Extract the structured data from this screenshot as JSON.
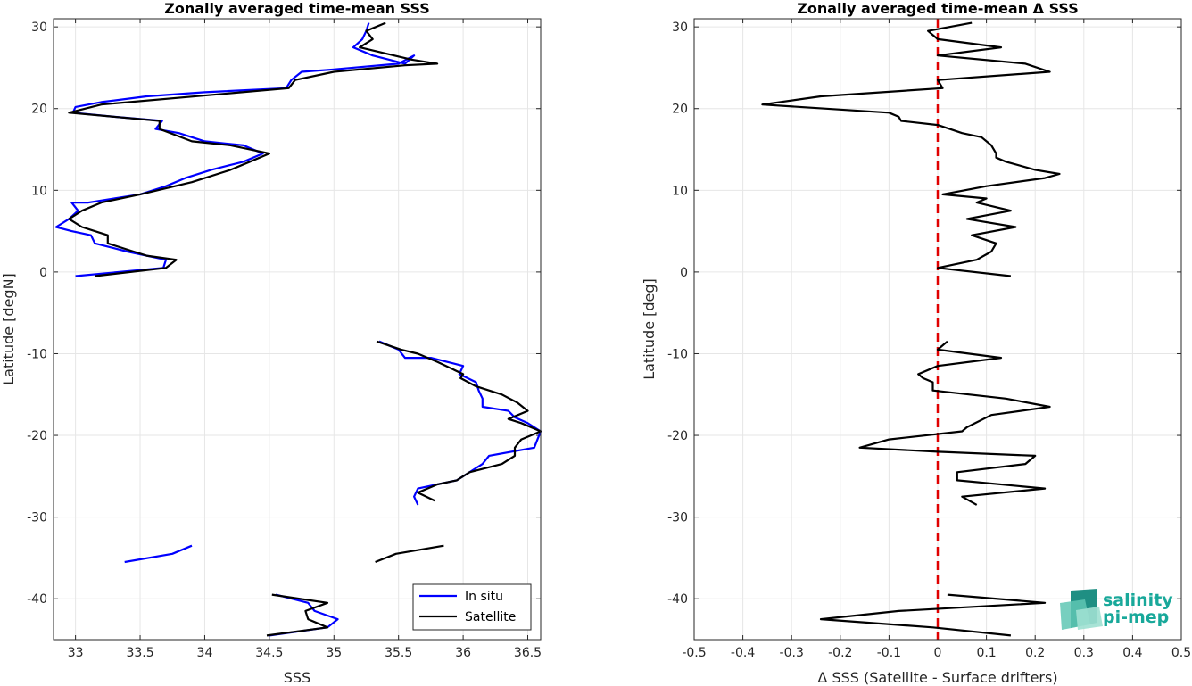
{
  "chart_data": [
    {
      "type": "line",
      "title": "Zonally averaged time-mean SSS",
      "xlabel": "SSS",
      "ylabel": "Latitude [degN]",
      "xlim": [
        32.83,
        36.6
      ],
      "ylim": [
        -45,
        31
      ],
      "xticks": [
        "33",
        "33.5",
        "34",
        "34.5",
        "35",
        "35.5",
        "36",
        "36.5"
      ],
      "yticks": [
        "30",
        "20",
        "10",
        "0",
        "-10",
        "-20",
        "-30",
        "-40"
      ],
      "grid": true,
      "legend": "bottom-right",
      "series": [
        {
          "name": "In situ",
          "color": "#0000ff",
          "segments": [
            [
              [
                35.27,
                30.5
              ],
              [
                35.25,
                29.5
              ],
              [
                35.22,
                28.5
              ],
              [
                35.15,
                27.5
              ],
              [
                35.3,
                26.5
              ],
              [
                35.55,
                25.5
              ],
              [
                35.62,
                26.5
              ],
              [
                35.5,
                25.5
              ],
              [
                35.0,
                24.8
              ],
              [
                34.75,
                24.5
              ],
              [
                34.67,
                23.5
              ],
              [
                34.63,
                22.5
              ],
              [
                34.0,
                22.0
              ],
              [
                33.55,
                21.5
              ],
              [
                33.2,
                20.8
              ],
              [
                33.0,
                20.2
              ],
              [
                32.98,
                19.5
              ],
              [
                33.3,
                19.0
              ],
              [
                33.67,
                18.5
              ],
              [
                33.62,
                17.5
              ],
              [
                33.8,
                17.0
              ],
              [
                34.0,
                16.0
              ],
              [
                34.3,
                15.5
              ],
              [
                34.45,
                14.5
              ],
              [
                34.3,
                13.5
              ],
              [
                34.05,
                12.5
              ],
              [
                33.85,
                11.5
              ],
              [
                33.7,
                10.5
              ],
              [
                33.5,
                9.5
              ],
              [
                33.1,
                8.5
              ],
              [
                32.97,
                8.5
              ],
              [
                33.02,
                7.5
              ],
              [
                32.95,
                6.5
              ],
              [
                32.85,
                5.5
              ],
              [
                32.97,
                5.0
              ],
              [
                33.12,
                4.5
              ],
              [
                33.15,
                3.5
              ],
              [
                33.4,
                2.5
              ],
              [
                33.7,
                1.5
              ],
              [
                33.68,
                0.5
              ],
              [
                33.0,
                -0.5
              ]
            ],
            [
              [
                35.35,
                -8.5
              ],
              [
                35.5,
                -9.5
              ],
              [
                35.55,
                -10.5
              ],
              [
                35.75,
                -10.5
              ],
              [
                36.0,
                -11.5
              ],
              [
                35.97,
                -12.5
              ],
              [
                36.1,
                -13.5
              ],
              [
                36.12,
                -14.5
              ],
              [
                36.15,
                -15.5
              ],
              [
                36.15,
                -16.5
              ],
              [
                36.35,
                -17.0
              ],
              [
                36.4,
                -17.8
              ],
              [
                36.5,
                -18.5
              ],
              [
                36.6,
                -19.5
              ],
              [
                36.55,
                -21.5
              ],
              [
                36.2,
                -22.5
              ],
              [
                36.15,
                -23.5
              ],
              [
                36.05,
                -24.5
              ],
              [
                35.95,
                -25.5
              ],
              [
                35.65,
                -26.5
              ],
              [
                35.62,
                -27.5
              ],
              [
                35.65,
                -28.5
              ]
            ],
            [
              [
                33.38,
                -35.5
              ],
              [
                33.75,
                -34.5
              ],
              [
                33.9,
                -33.5
              ]
            ],
            [
              [
                34.55,
                -39.5
              ],
              [
                34.8,
                -40.5
              ],
              [
                34.85,
                -41.5
              ],
              [
                35.03,
                -42.5
              ],
              [
                34.95,
                -43.5
              ],
              [
                34.5,
                -44.5
              ]
            ]
          ]
        },
        {
          "name": "Satellite",
          "color": "#000000",
          "segments": [
            [
              [
                35.4,
                30.5
              ],
              [
                35.25,
                29.5
              ],
              [
                35.3,
                28.5
              ],
              [
                35.2,
                27.5
              ],
              [
                35.6,
                26.0
              ],
              [
                35.8,
                25.5
              ],
              [
                35.55,
                25.3
              ],
              [
                35.0,
                24.5
              ],
              [
                34.7,
                23.5
              ],
              [
                34.65,
                22.5
              ],
              [
                33.2,
                20.5
              ],
              [
                32.95,
                19.5
              ],
              [
                33.65,
                18.5
              ],
              [
                33.65,
                17.5
              ],
              [
                33.9,
                16.0
              ],
              [
                34.2,
                15.5
              ],
              [
                34.5,
                14.5
              ],
              [
                34.35,
                13.5
              ],
              [
                34.2,
                12.5
              ],
              [
                33.9,
                11.0
              ],
              [
                33.5,
                9.5
              ],
              [
                33.2,
                8.5
              ],
              [
                33.05,
                7.5
              ],
              [
                32.95,
                6.5
              ],
              [
                33.05,
                5.5
              ],
              [
                33.25,
                4.5
              ],
              [
                33.25,
                3.5
              ],
              [
                33.45,
                2.5
              ],
              [
                33.55,
                2.0
              ],
              [
                33.78,
                1.5
              ],
              [
                33.7,
                0.5
              ],
              [
                33.15,
                -0.5
              ]
            ],
            [
              [
                35.33,
                -8.5
              ],
              [
                35.52,
                -9.5
              ],
              [
                35.65,
                -10.0
              ],
              [
                35.8,
                -11.0
              ],
              [
                36.0,
                -12.5
              ],
              [
                35.98,
                -13.0
              ],
              [
                36.1,
                -14.0
              ],
              [
                36.3,
                -15.0
              ],
              [
                36.42,
                -16.0
              ],
              [
                36.5,
                -17.0
              ],
              [
                36.35,
                -18.0
              ],
              [
                36.45,
                -18.5
              ],
              [
                36.6,
                -19.5
              ],
              [
                36.45,
                -20.5
              ],
              [
                36.4,
                -21.5
              ],
              [
                36.4,
                -22.5
              ],
              [
                36.3,
                -23.5
              ],
              [
                36.05,
                -24.5
              ],
              [
                35.95,
                -25.5
              ],
              [
                35.8,
                -26.0
              ],
              [
                35.65,
                -27.0
              ],
              [
                35.78,
                -28.0
              ]
            ],
            [
              [
                35.32,
                -35.5
              ],
              [
                35.48,
                -34.5
              ],
              [
                35.85,
                -33.5
              ]
            ],
            [
              [
                34.52,
                -39.5
              ],
              [
                34.95,
                -40.5
              ],
              [
                34.78,
                -41.5
              ],
              [
                34.8,
                -42.5
              ],
              [
                34.95,
                -43.5
              ],
              [
                34.48,
                -44.5
              ]
            ]
          ]
        }
      ]
    },
    {
      "type": "line",
      "title": "Zonally averaged time-mean Δ SSS",
      "xlabel": "Δ SSS (Satellite - Surface drifters)",
      "ylabel": "Latitude [deg]",
      "xlim": [
        -0.5,
        0.5
      ],
      "ylim": [
        -45,
        31
      ],
      "xticks": [
        "-0.5",
        "-0.4",
        "-0.3",
        "-0.2",
        "-0.1",
        "0",
        "0.1",
        "0.2",
        "0.3",
        "0.4",
        "0.5"
      ],
      "yticks": [
        "30",
        "20",
        "10",
        "0",
        "-10",
        "-20",
        "-30",
        "-40"
      ],
      "grid": true,
      "zero_line": {
        "value": 0,
        "color": "#e00000",
        "style": "dashed"
      },
      "series": [
        {
          "color": "#000000",
          "segments": [
            [
              [
                0.07,
                30.5
              ],
              [
                -0.02,
                29.5
              ],
              [
                0.0,
                28.5
              ],
              [
                0.13,
                27.5
              ],
              [
                0.0,
                26.5
              ],
              [
                0.18,
                25.5
              ],
              [
                0.23,
                24.5
              ],
              [
                0.0,
                23.5
              ],
              [
                0.01,
                22.5
              ],
              [
                -0.24,
                21.5
              ],
              [
                -0.36,
                20.5
              ],
              [
                -0.1,
                19.5
              ],
              [
                -0.08,
                19.0
              ],
              [
                -0.075,
                18.5
              ],
              [
                0.0,
                18.0
              ],
              [
                0.05,
                17.0
              ],
              [
                0.09,
                16.5
              ],
              [
                0.11,
                15.5
              ],
              [
                0.12,
                14.5
              ],
              [
                0.12,
                14.0
              ],
              [
                0.14,
                13.5
              ],
              [
                0.2,
                12.5
              ],
              [
                0.25,
                12.0
              ],
              [
                0.22,
                11.5
              ],
              [
                0.1,
                10.5
              ],
              [
                0.01,
                9.5
              ],
              [
                0.1,
                9.0
              ],
              [
                0.08,
                8.5
              ],
              [
                0.15,
                7.5
              ],
              [
                0.06,
                6.5
              ],
              [
                0.16,
                5.5
              ],
              [
                0.07,
                4.5
              ],
              [
                0.12,
                3.5
              ],
              [
                0.11,
                2.5
              ],
              [
                0.08,
                1.5
              ],
              [
                0.0,
                0.5
              ],
              [
                0.15,
                -0.5
              ]
            ],
            [
              [
                0.02,
                -8.5
              ],
              [
                0.0,
                -9.5
              ],
              [
                0.13,
                -10.5
              ],
              [
                0.0,
                -11.5
              ],
              [
                -0.04,
                -12.5
              ],
              [
                -0.03,
                -13.0
              ],
              [
                -0.01,
                -13.5
              ],
              [
                -0.01,
                -14.5
              ],
              [
                0.14,
                -15.5
              ],
              [
                0.23,
                -16.5
              ],
              [
                0.11,
                -17.5
              ],
              [
                0.06,
                -19.0
              ],
              [
                0.05,
                -19.5
              ],
              [
                -0.1,
                -20.5
              ],
              [
                -0.16,
                -21.5
              ],
              [
                0.0,
                -22.0
              ],
              [
                0.2,
                -22.5
              ],
              [
                0.18,
                -23.5
              ],
              [
                0.04,
                -24.5
              ],
              [
                0.04,
                -25.5
              ],
              [
                0.22,
                -26.5
              ],
              [
                0.05,
                -27.5
              ],
              [
                0.08,
                -28.5
              ]
            ],
            [
              [
                0.02,
                -39.5
              ],
              [
                0.22,
                -40.5
              ],
              [
                -0.08,
                -41.5
              ],
              [
                -0.24,
                -42.5
              ],
              [
                -0.01,
                -43.5
              ],
              [
                0.15,
                -44.5
              ]
            ]
          ]
        }
      ]
    }
  ],
  "logo": {
    "line1": "salinity",
    "line2": "pi-mep"
  }
}
